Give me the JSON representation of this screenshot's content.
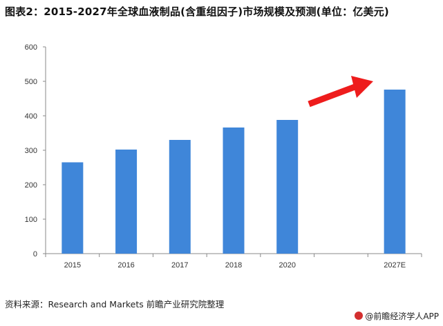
{
  "title": "图表2：2015-2027年全球血液制品(含重组因子)市场规模及预测(单位：亿美元)",
  "source": "资料来源：Research and Markets 前瞻产业研究院整理",
  "brand": "@前瞻经济学人APP",
  "colors": {
    "bar": "#3f86d9",
    "arrow": "#ee1c1c",
    "axis": "#888888"
  },
  "chart_data": {
    "type": "bar",
    "categories": [
      "2015",
      "2016",
      "2017",
      "2018",
      "2020",
      "",
      "2027E"
    ],
    "values": [
      265,
      302,
      330,
      366,
      388,
      null,
      476
    ],
    "ylim": [
      0,
      600
    ],
    "yticks": [
      0,
      100,
      200,
      300,
      400,
      500,
      600
    ],
    "grid": false,
    "annotation": "upward-trend-arrow"
  }
}
